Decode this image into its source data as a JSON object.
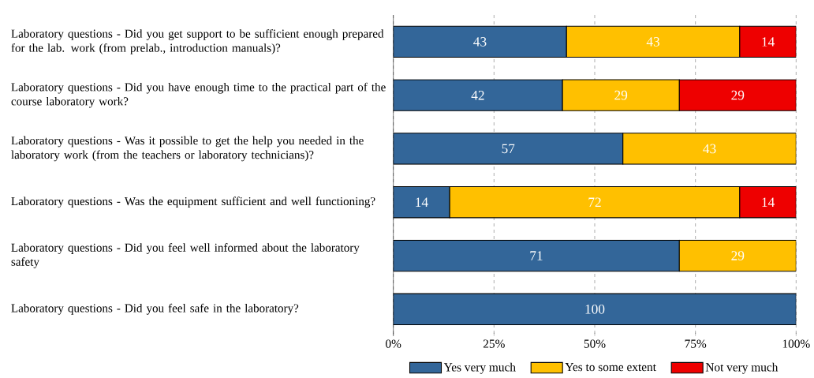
{
  "chart_data": {
    "type": "bar",
    "orientation": "horizontal",
    "stacked": true,
    "categories": [
      "Laboratory questions - Did you get support to be sufficient enough prepared for the lab. work (from prelab., introduction manuals)?",
      "Laboratory questions - Did you have enough time to the practical part of the course laboratory work?",
      "Laboratory questions - Was it possible to get the help you needed in the laboratory work (from the teachers or laboratory technicians)?",
      "Laboratory questions - Was the equipment sufficient and well functioning?",
      "Laboratory questions - Did you feel well informed about the laboratory safety",
      "Laboratory questions - Did you feel safe in the laboratory?"
    ],
    "series": [
      {
        "name": "Yes very much",
        "color": "#336699",
        "values": [
          43,
          42,
          57,
          14,
          71,
          100
        ]
      },
      {
        "name": "Yes to some extent",
        "color": "#ffc000",
        "values": [
          43,
          29,
          43,
          72,
          29,
          null
        ]
      },
      {
        "name": "Not very much",
        "color": "#ee0000",
        "values": [
          14,
          29,
          null,
          14,
          null,
          null
        ]
      }
    ],
    "xlim": [
      0,
      100
    ],
    "xticks": [
      {
        "value": 0,
        "label": "0%"
      },
      {
        "value": 25,
        "label": "25%"
      },
      {
        "value": 50,
        "label": "50%"
      },
      {
        "value": 75,
        "label": "75%"
      },
      {
        "value": 100,
        "label": "100%"
      }
    ],
    "grid": "x",
    "legend": "bottom",
    "data_labels": true
  }
}
